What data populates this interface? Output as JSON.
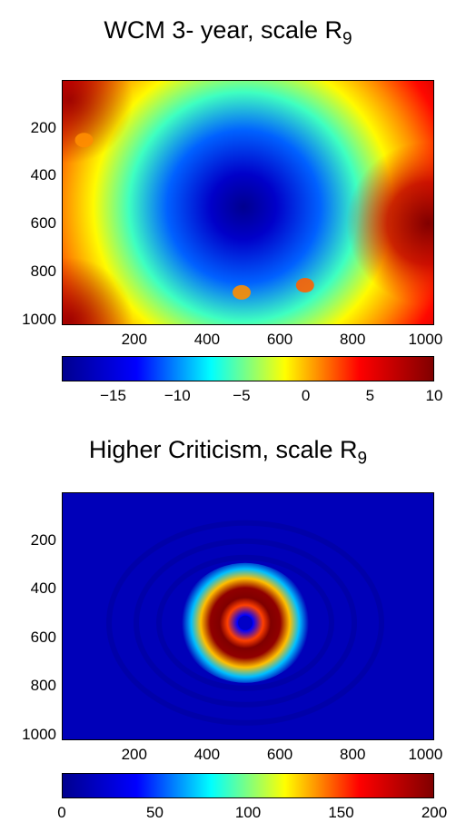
{
  "chart_data": [
    {
      "type": "heatmap",
      "title": "WCM 3- year, scale R",
      "title_subscript": "9",
      "x_ticks": [
        "200",
        "400",
        "600",
        "800",
        "1000"
      ],
      "y_ticks": [
        "200",
        "400",
        "600",
        "800",
        "1000"
      ],
      "xlim": [
        1,
        1024
      ],
      "ylim": [
        1,
        1024
      ],
      "y_axis_reversed": true,
      "colormap": "jet",
      "colorbar": {
        "ticks": [
          "−15",
          "−10",
          "−5",
          "0",
          "5",
          "10"
        ],
        "range": [
          -19,
          10
        ],
        "tick_values": [
          -15,
          -10,
          -5,
          0,
          5,
          10
        ]
      },
      "features": [
        {
          "kind": "minimum",
          "x": 500,
          "y": 530,
          "value": -19
        },
        {
          "kind": "maximum",
          "x": 1010,
          "y": 600,
          "value": 10
        },
        {
          "kind": "high-corner",
          "x": 20,
          "y": 80,
          "value": 9
        },
        {
          "kind": "high-corner",
          "x": 20,
          "y": 1010,
          "value": 9
        },
        {
          "kind": "spot",
          "x": 60,
          "y": 250,
          "value": 1
        },
        {
          "kind": "spot",
          "x": 495,
          "y": 890,
          "value": 1
        },
        {
          "kind": "spot",
          "x": 670,
          "y": 860,
          "value": 2
        }
      ]
    },
    {
      "type": "heatmap",
      "title": "Higher Criticism, scale R",
      "title_subscript": "9",
      "x_ticks": [
        "200",
        "400",
        "600",
        "800",
        "1000"
      ],
      "y_ticks": [
        "200",
        "400",
        "600",
        "800",
        "1000"
      ],
      "xlim": [
        1,
        1024
      ],
      "ylim": [
        1,
        1024
      ],
      "y_axis_reversed": true,
      "colormap": "jet",
      "colorbar": {
        "ticks": [
          "0",
          "50",
          "100",
          "150",
          "200"
        ],
        "range": [
          0,
          200
        ],
        "tick_values": [
          0,
          50,
          100,
          150,
          200
        ]
      },
      "features": [
        {
          "kind": "ring-peak",
          "center_x": 505,
          "center_y": 540,
          "ring_radius": 70,
          "value": 200
        },
        {
          "kind": "center-dip",
          "x": 505,
          "y": 540,
          "value": 20
        },
        {
          "kind": "background",
          "value": 15
        }
      ]
    }
  ],
  "colors": {
    "jet": [
      "#00008f",
      "#0000ff",
      "#00ffff",
      "#ffff00",
      "#ff0000",
      "#800000"
    ]
  }
}
